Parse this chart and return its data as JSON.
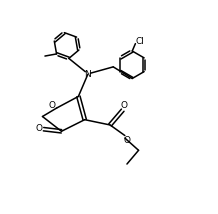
{
  "bg_color": "#ffffff",
  "line_color": "#000000",
  "line_width": 1.1,
  "font_size": 6.5,
  "figsize": [
    2.18,
    2.14
  ],
  "dpi": 100,
  "xlim": [
    0,
    10
  ],
  "ylim": [
    0,
    10
  ]
}
